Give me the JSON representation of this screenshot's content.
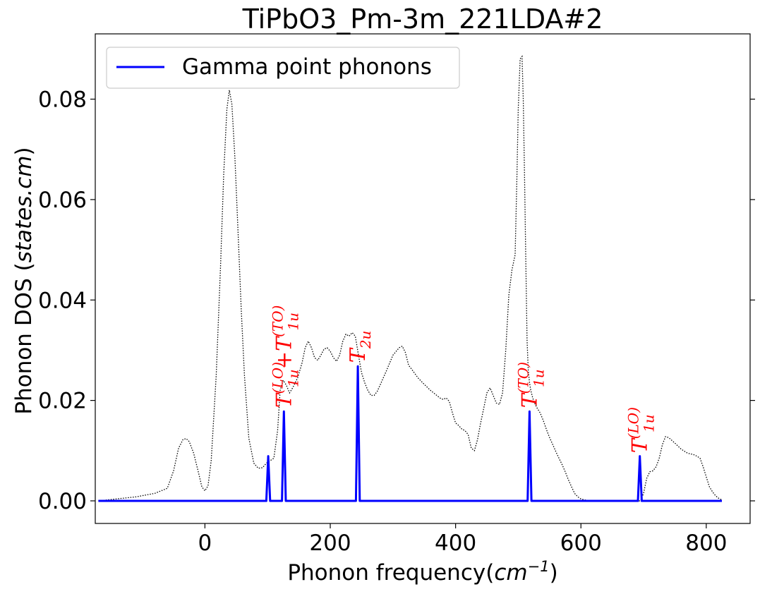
{
  "chart_data": {
    "type": "line",
    "title": "TiPbO3_Pm-3m_221LDA#2",
    "xlabel": "Phonon frequency",
    "xlabel_unit_base": "cm",
    "xlabel_unit_exp": "−1",
    "ylabel": "Phonon DOS (",
    "ylabel_unit": "states.cm",
    "ylabel_close": ")",
    "xlim": [
      -175,
      870
    ],
    "ylim": [
      -0.0045,
      0.093
    ],
    "xticks": [
      "0",
      "200",
      "400",
      "600",
      "800"
    ],
    "xtick_values": [
      0,
      200,
      400,
      600,
      800
    ],
    "yticks": [
      "0.00",
      "0.02",
      "0.04",
      "0.06",
      "0.08"
    ],
    "ytick_values": [
      0.0,
      0.02,
      0.04,
      0.06,
      0.08
    ],
    "legend": {
      "position": "upper-left",
      "entries": [
        "Gamma point phonons"
      ]
    },
    "series": [
      {
        "name": "Gamma point phonons",
        "color": "#0000ff",
        "style": "solid",
        "peaks": [
          {
            "x": 101,
            "y": 0.0089
          },
          {
            "x": 126,
            "y": 0.0178
          },
          {
            "x": 244,
            "y": 0.0268
          },
          {
            "x": 518,
            "y": 0.0178
          },
          {
            "x": 694,
            "y": 0.0089
          }
        ],
        "x_range": [
          -170,
          825
        ]
      },
      {
        "color": "#000000",
        "style": "dotted",
        "x": [
          -170,
          -140,
          -110,
          -80,
          -60,
          -50,
          -42,
          -35,
          -30,
          -25,
          -18,
          -10,
          -5,
          0,
          5,
          10,
          18,
          25,
          30,
          35,
          39,
          43,
          48,
          53,
          58,
          63,
          70,
          78,
          85,
          92,
          98,
          104,
          110,
          116,
          120,
          125,
          130,
          135,
          140,
          148,
          155,
          160,
          165,
          170,
          175,
          180,
          185,
          190,
          195,
          200,
          205,
          210,
          215,
          220,
          225,
          230,
          235,
          240,
          245,
          250,
          255,
          260,
          265,
          270,
          275,
          280,
          290,
          300,
          310,
          315,
          320,
          325,
          330,
          340,
          350,
          360,
          370,
          375,
          380,
          385,
          390,
          395,
          400,
          405,
          410,
          415,
          420,
          425,
          430,
          435,
          440,
          445,
          450,
          455,
          460,
          465,
          470,
          475,
          480,
          485,
          490,
          495,
          498,
          500,
          503,
          506,
          508,
          510,
          512,
          514,
          516,
          518,
          520,
          523,
          526,
          530,
          535,
          540,
          545,
          550,
          555,
          560,
          565,
          570,
          575,
          580,
          585,
          590,
          595,
          600,
          605,
          610,
          615,
          620,
          625,
          630,
          635,
          640,
          645,
          650,
          655,
          660,
          665,
          670,
          675,
          680,
          685,
          690,
          695,
          700,
          705,
          710,
          715,
          720,
          725,
          730,
          735,
          740,
          750,
          760,
          770,
          780,
          785,
          790,
          795,
          800,
          805,
          810,
          815,
          820,
          825
        ],
        "y": [
          0.0,
          0.0004,
          0.0008,
          0.0015,
          0.0025,
          0.006,
          0.0105,
          0.0122,
          0.0124,
          0.0118,
          0.0095,
          0.0055,
          0.0028,
          0.002,
          0.003,
          0.008,
          0.025,
          0.047,
          0.065,
          0.078,
          0.0818,
          0.079,
          0.068,
          0.053,
          0.038,
          0.025,
          0.0125,
          0.0075,
          0.0065,
          0.0066,
          0.0075,
          0.008,
          0.0085,
          0.014,
          0.022,
          0.024,
          0.023,
          0.0215,
          0.0225,
          0.0245,
          0.0275,
          0.0305,
          0.0318,
          0.0305,
          0.0285,
          0.028,
          0.029,
          0.0302,
          0.0305,
          0.0298,
          0.0285,
          0.0278,
          0.029,
          0.0318,
          0.0332,
          0.0328,
          0.0335,
          0.0328,
          0.029,
          0.0255,
          0.0235,
          0.022,
          0.021,
          0.021,
          0.0218,
          0.0232,
          0.026,
          0.029,
          0.0305,
          0.0308,
          0.0295,
          0.027,
          0.0262,
          0.0245,
          0.0232,
          0.022,
          0.021,
          0.0205,
          0.0202,
          0.0205,
          0.0198,
          0.0175,
          0.0155,
          0.015,
          0.0143,
          0.014,
          0.0132,
          0.0105,
          0.01,
          0.0122,
          0.0155,
          0.0185,
          0.0215,
          0.0225,
          0.021,
          0.0195,
          0.0192,
          0.0215,
          0.03,
          0.041,
          0.046,
          0.049,
          0.065,
          0.078,
          0.088,
          0.0885,
          0.08,
          0.065,
          0.048,
          0.032,
          0.026,
          0.0235,
          0.022,
          0.0205,
          0.0195,
          0.0185,
          0.0175,
          0.016,
          0.0142,
          0.0126,
          0.0112,
          0.0098,
          0.0085,
          0.0072,
          0.0058,
          0.0042,
          0.0028,
          0.0015,
          0.0008,
          0.0004,
          0.0002,
          0.0001,
          0.0,
          0.0,
          0.0,
          0.0,
          0.0,
          0.0,
          0.0,
          0.0,
          0.0,
          0.0,
          0.0,
          0.0,
          0.0,
          0.0,
          0.0,
          0.0,
          0.0,
          0.0015,
          0.0045,
          0.0058,
          0.006,
          0.0068,
          0.0085,
          0.0112,
          0.0128,
          0.0126,
          0.0115,
          0.0103,
          0.0095,
          0.0092,
          0.0089,
          0.0085,
          0.0068,
          0.0048,
          0.0028,
          0.0018,
          0.001,
          0.0005,
          0.0002
        ]
      }
    ],
    "annotations": [
      {
        "parts": [
          [
            "T",
            "(LO)",
            "1u"
          ],
          [
            "+T",
            "(TO)",
            "1u"
          ]
        ],
        "x": 126,
        "y_anchor": 0.0185
      },
      {
        "parts": [
          [
            "T",
            "",
            "2u"
          ]
        ],
        "x": 244,
        "y_anchor": 0.0275
      },
      {
        "parts": [
          [
            "T",
            "(TO)",
            "1u"
          ]
        ],
        "x": 518,
        "y_anchor": 0.0185
      },
      {
        "parts": [
          [
            "T",
            "(LO)",
            "1u"
          ]
        ],
        "x": 694,
        "y_anchor": 0.0095
      }
    ]
  }
}
